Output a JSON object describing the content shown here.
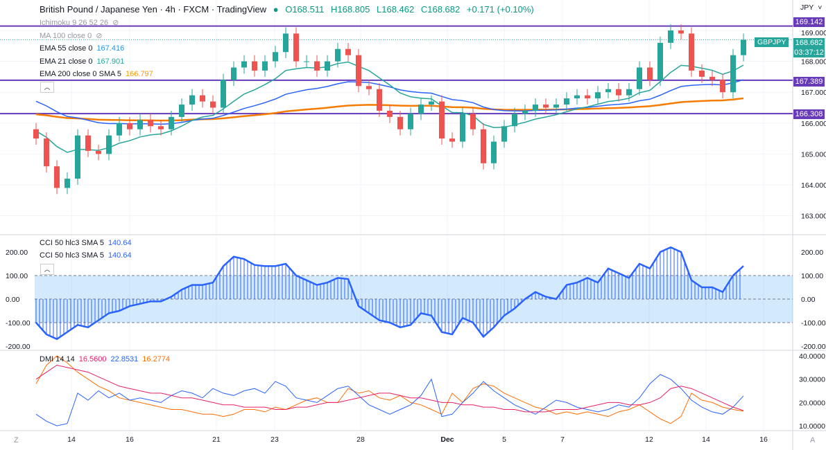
{
  "header": {
    "title": "British Pound / Japanese Yen · 4h · FXCM · TradingView",
    "open": "O168.511",
    "high": "H168.805",
    "low": "L168.462",
    "close": "C168.682",
    "change": "+0.171 (+0.10%)"
  },
  "legend": {
    "ichimoku": "Ichimoku 9 26 52 26",
    "ma100": "MA 100 close 0",
    "ema55": "EMA 55 close 0",
    "ema55_val": "167.416",
    "ema21": "EMA 21 close 0",
    "ema21_val": "167.901",
    "ema200": "EMA 200 close 0 SMA 5",
    "ema200_val": "166.797",
    "cci1": "CCI 50 hlc3 SMA 5",
    "cci1_val": "140.64",
    "cci2": "CCI 50 hlc3 SMA 5",
    "cci2_val": "140.64",
    "dmi": "DMI 14 14",
    "dmi_adx": "16.5600",
    "dmi_plus": "22.8531",
    "dmi_minus": "16.2774"
  },
  "axis": {
    "currency": "JPY",
    "symbol": "GBPJPY",
    "last_price": "168.682",
    "countdown": "03:37:12",
    "levels": [
      "169.142",
      "167.389",
      "166.308"
    ],
    "price_ticks": [
      "169.000",
      "168.000",
      "167.000",
      "166.000",
      "165.000",
      "164.000",
      "163.000"
    ],
    "cci_ticks": [
      "200.00",
      "100.00",
      "0.00",
      "-100.00",
      "-200.00"
    ],
    "dmi_ticks": [
      "40.0000",
      "30.0000",
      "20.0000",
      "10.0000"
    ],
    "dates": [
      "14",
      "16",
      "21",
      "23",
      "28",
      "Dec",
      "5",
      "7",
      "12",
      "14",
      "16"
    ],
    "left_btn": "Z",
    "right_btn": "A"
  },
  "colors": {
    "up": "#26a69a",
    "down": "#ef5350",
    "level": "#673ab7",
    "ema21": "#26a69a",
    "ema55": "#2962ff",
    "ema200": "#f57c00",
    "cci": "#2962ff",
    "adx": "#e91e63",
    "plus_di": "#2962ff",
    "minus_di": "#ff6d00"
  },
  "chart_data": {
    "type": "candlestick",
    "closes": [
      165.5,
      164.6,
      163.9,
      164.2,
      165.6,
      165.1,
      165.0,
      165.6,
      166.0,
      165.8,
      166.1,
      165.9,
      165.8,
      166.2,
      166.6,
      166.9,
      166.7,
      166.5,
      167.4,
      167.8,
      168.0,
      167.7,
      168.0,
      168.3,
      168.9,
      168.0,
      168.0,
      167.7,
      168.0,
      168.4,
      168.2,
      167.2,
      167.1,
      166.4,
      166.2,
      165.8,
      166.3,
      166.6,
      166.7,
      165.5,
      165.4,
      166.3,
      165.8,
      164.7,
      165.4,
      165.9,
      166.3,
      166.4,
      166.6,
      166.5,
      166.6,
      166.8,
      166.9,
      166.8,
      167.0,
      167.1,
      166.9,
      167.1,
      167.8,
      167.4,
      168.6,
      169.0,
      168.9,
      167.7,
      167.5,
      167.4,
      167.0,
      168.2,
      168.7
    ],
    "levels": [
      169.142,
      167.389,
      166.308
    ],
    "price_range": [
      162.4,
      169.6
    ],
    "cci": [
      -100,
      -150,
      -170,
      -140,
      -110,
      -120,
      -90,
      -60,
      -50,
      -30,
      -20,
      -10,
      -10,
      10,
      40,
      60,
      60,
      70,
      140,
      180,
      170,
      145,
      140,
      140,
      150,
      100,
      80,
      60,
      70,
      90,
      85,
      -30,
      -60,
      -90,
      -100,
      -120,
      -110,
      -60,
      -70,
      -140,
      -150,
      -80,
      -100,
      -160,
      -120,
      -70,
      -40,
      0,
      30,
      10,
      0,
      60,
      70,
      90,
      70,
      130,
      110,
      90,
      150,
      130,
      200,
      220,
      200,
      80,
      50,
      50,
      30,
      100,
      140.64
    ],
    "cci_range": [
      -220,
      260
    ],
    "adx": [
      30,
      33,
      36,
      35,
      34,
      33,
      31,
      29,
      27,
      26,
      25,
      24,
      24,
      23,
      22,
      22,
      21,
      20,
      19,
      19,
      18,
      18,
      18,
      17,
      17,
      18,
      18,
      19,
      20,
      20,
      21,
      22,
      23,
      24,
      24,
      23,
      22,
      22,
      21,
      20,
      20,
      19,
      19,
      18,
      18,
      17,
      17,
      16,
      16,
      16,
      17,
      17,
      17,
      18,
      19,
      20,
      20,
      19,
      19,
      20,
      22,
      26,
      27,
      26,
      24,
      22,
      20,
      18,
      16.56
    ],
    "plus_di": [
      15,
      12,
      10,
      11,
      24,
      21,
      25,
      22,
      24,
      21,
      22,
      21,
      20,
      23,
      25,
      24,
      22,
      26,
      24,
      23,
      25,
      26,
      24,
      29,
      27,
      22,
      21,
      20,
      23,
      26,
      27,
      23,
      19,
      17,
      15,
      17,
      19,
      23,
      30,
      14,
      15,
      20,
      24,
      29,
      25,
      22,
      19,
      17,
      15,
      18,
      21,
      20,
      18,
      17,
      16,
      17,
      19,
      18,
      22,
      28,
      32,
      30,
      26,
      21,
      18,
      16,
      15,
      18,
      22.85
    ],
    "minus_di": [
      28,
      36,
      40,
      37,
      33,
      30,
      27,
      25,
      22,
      21,
      20,
      19,
      18,
      17,
      17,
      16,
      15,
      15,
      14,
      15,
      17,
      17,
      16,
      18,
      17,
      19,
      21,
      22,
      20,
      20,
      26,
      24,
      25,
      22,
      21,
      23,
      20,
      19,
      17,
      15,
      24,
      20,
      26,
      28,
      27,
      24,
      22,
      20,
      18,
      17,
      15,
      16,
      15,
      16,
      15,
      14,
      16,
      17,
      19,
      16,
      13,
      11,
      14,
      24,
      21,
      20,
      18,
      17,
      16.28
    ],
    "dmi_range": [
      5,
      42
    ]
  }
}
